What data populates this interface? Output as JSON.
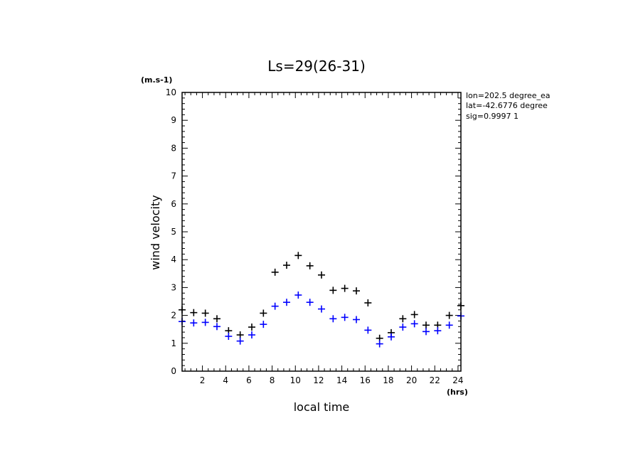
{
  "chart_data": {
    "type": "scatter",
    "title": "Ls=29(26-31)",
    "xlabel": "local time",
    "ylabel": "wind velocity",
    "x_unit": "(hrs)",
    "y_unit": "(m.s-1)",
    "xlim": [
      0.25,
      24.25
    ],
    "ylim": [
      0,
      10
    ],
    "x_ticks": [
      2,
      4,
      6,
      8,
      10,
      12,
      14,
      16,
      18,
      20,
      22,
      24
    ],
    "y_ticks": [
      0,
      1,
      2,
      3,
      4,
      5,
      6,
      7,
      8,
      9,
      10
    ],
    "info": [
      "lon=202.5 degree_ea",
      "lat=-42.6776 degree",
      "sig=0.9997 1"
    ],
    "series": [
      {
        "color": "#000000",
        "marker": "plus",
        "x": [
          0.25,
          1.25,
          2.25,
          3.25,
          4.25,
          5.25,
          6.25,
          7.25,
          8.25,
          9.25,
          10.25,
          11.25,
          12.25,
          13.25,
          14.25,
          15.25,
          16.25,
          17.25,
          18.25,
          19.25,
          20.25,
          21.25,
          22.25,
          23.25,
          24.25
        ],
        "y": [
          2.2,
          2.1,
          2.08,
          1.88,
          1.45,
          1.3,
          1.58,
          2.08,
          3.55,
          3.8,
          4.15,
          3.78,
          3.45,
          2.9,
          2.97,
          2.88,
          2.45,
          1.18,
          1.38,
          1.88,
          2.03,
          1.65,
          1.65,
          2.0,
          2.35
        ]
      },
      {
        "color": "#0000ff",
        "marker": "plus",
        "x": [
          0.25,
          1.25,
          2.25,
          3.25,
          4.25,
          5.25,
          6.25,
          7.25,
          8.25,
          9.25,
          10.25,
          11.25,
          12.25,
          13.25,
          14.25,
          15.25,
          16.25,
          17.25,
          18.25,
          19.25,
          20.25,
          21.25,
          22.25,
          23.25,
          24.25
        ],
        "y": [
          1.78,
          1.73,
          1.75,
          1.6,
          1.25,
          1.08,
          1.3,
          1.68,
          2.33,
          2.47,
          2.73,
          2.47,
          2.23,
          1.88,
          1.93,
          1.85,
          1.47,
          0.98,
          1.23,
          1.58,
          1.7,
          1.42,
          1.45,
          1.65,
          1.98
        ]
      }
    ]
  }
}
